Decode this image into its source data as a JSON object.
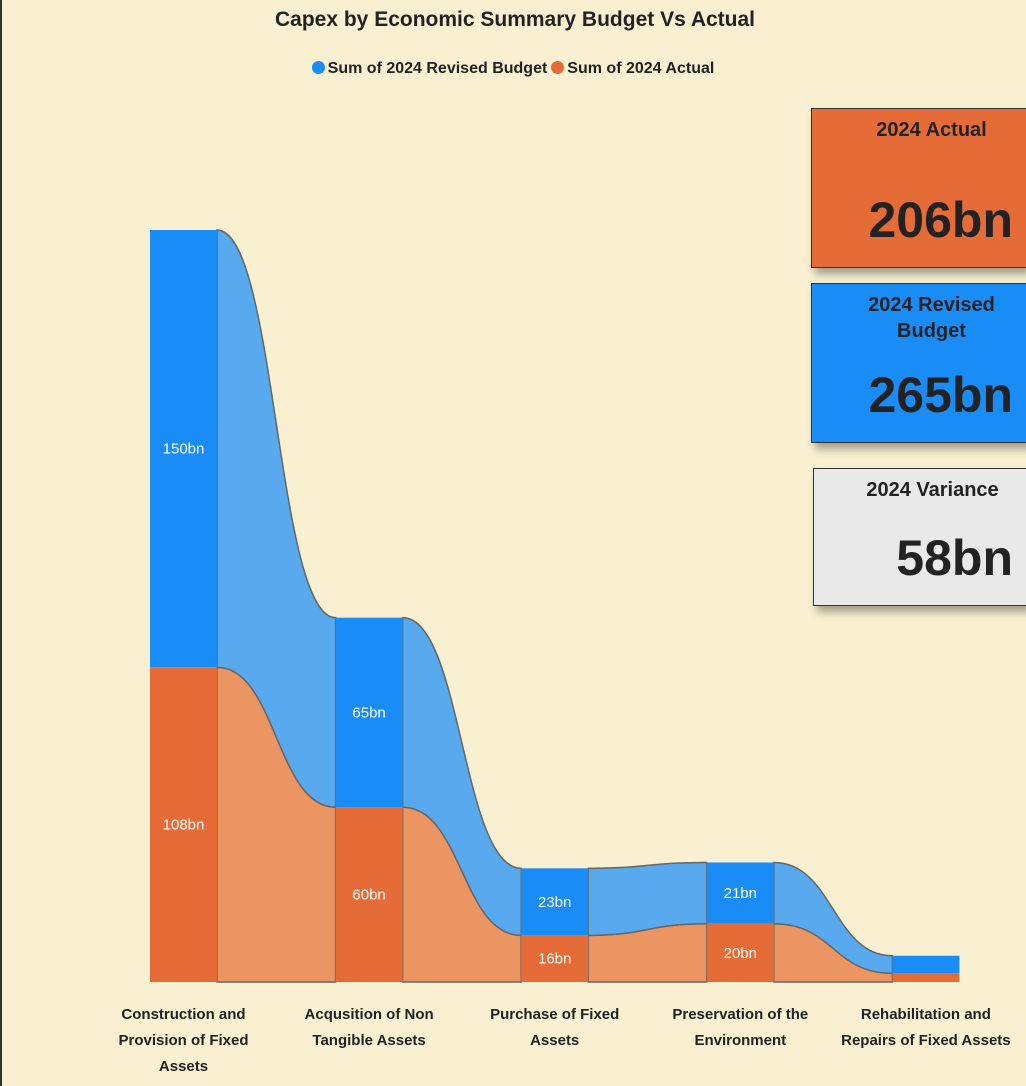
{
  "chart_data": {
    "type": "ribbon",
    "title": "Capex by Economic Summary Budget Vs Actual",
    "categories": [
      "Construction and Provision of Fixed Assets",
      "Acqusition of Non Tangible Assets",
      "Purchase of Fixed Assets",
      "Preservation of the Environment",
      "Rehabilitation and Repairs of Fixed Assets"
    ],
    "series": [
      {
        "name": "Sum of 2024 Actual",
        "color": "#e66c37",
        "ribbon_color": "#eb9563",
        "values": [
          108,
          60,
          16,
          20,
          3
        ],
        "value_labels": [
          "108bn",
          "60bn",
          "16bn",
          "20bn",
          null
        ]
      },
      {
        "name": "Sum of 2024 Revised Budget",
        "color": "#1a8cf5",
        "ribbon_color": "#58a9ee",
        "values": [
          150,
          65,
          23,
          21,
          6
        ],
        "value_labels": [
          "150bn",
          "65bn",
          "23bn",
          "21bn",
          null
        ]
      }
    ],
    "ylim": [
      0,
      258
    ],
    "cards": [
      {
        "title": "2024 Actual",
        "value": "206bn",
        "color": "#e66c37"
      },
      {
        "title": "2024 Revised Budget",
        "value": "265bn",
        "color": "#1a8cf5"
      },
      {
        "title": "2024 Variance",
        "value": "58bn",
        "color": "#e9e9e9"
      }
    ]
  }
}
